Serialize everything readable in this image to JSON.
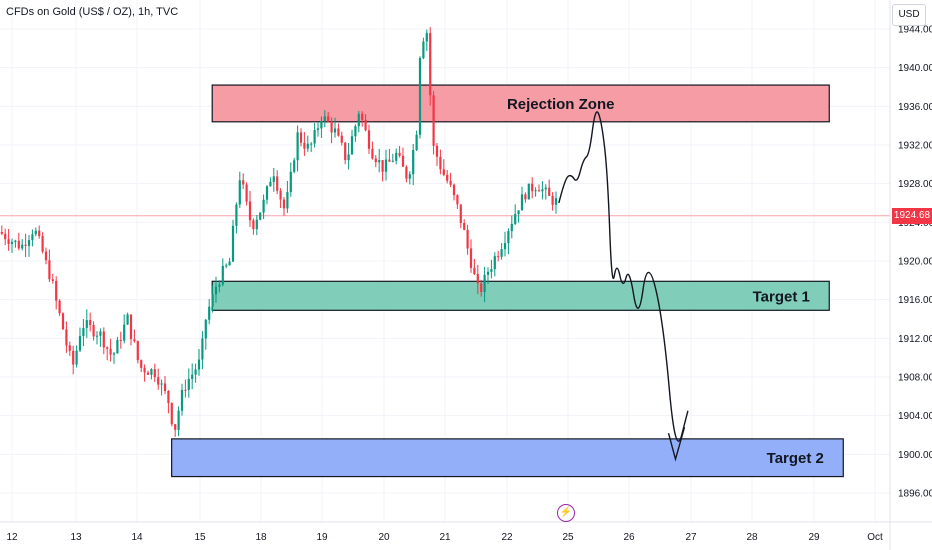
{
  "header": {
    "title": "CFDs on Gold (US$ / OZ), 1h, TVC",
    "currency": "USD"
  },
  "current_price": {
    "label": "1924.68",
    "value": 1924.68,
    "color": "#f23645"
  },
  "colors": {
    "up": "#089981",
    "down": "#f23645",
    "grid": "#f0f3fa",
    "line": "#131722"
  },
  "event_icon": "lightning-icon",
  "zones": [
    {
      "label": "Rejection Zone",
      "x0": 15.2,
      "x1": 25.25,
      "top": 1938.2,
      "bottom": 1934.4,
      "fill": "#f59ca4"
    },
    {
      "label": "Target 1",
      "x0": 15.2,
      "x1": 25.25,
      "top": 1917.9,
      "bottom": 1914.9,
      "fill": "#80cdb9"
    },
    {
      "label": "Target 2",
      "x0": 14.55,
      "x1": 25.48,
      "top": 1901.6,
      "bottom": 1897.7,
      "fill": "#94aff9"
    }
  ],
  "chart_data": {
    "type": "candlestick",
    "title": "CFDs on Gold (US$ / OZ), 1h, TVC",
    "x_ticks": [
      "12",
      "13",
      "14",
      "15",
      "18",
      "19",
      "20",
      "21",
      "22",
      "25",
      "26",
      "27",
      "28",
      "29",
      "Oct"
    ],
    "y_ticks": [
      1896,
      1900,
      1904,
      1908,
      1912,
      1916,
      1920,
      1924,
      1928,
      1932,
      1936,
      1940,
      1944
    ],
    "y_tick_labels": [
      "1896.00",
      "1900.00",
      "1904.00",
      "1908.00",
      "1912.00",
      "1916.00",
      "1920.00",
      "1924.00",
      "1928.00",
      "1932.00",
      "1936.00",
      "1940.00",
      "1944.00"
    ],
    "ylim": [
      1893,
      1947
    ],
    "price_path": [
      [
        11.8,
        1923.0
      ],
      [
        12.15,
        1921.5
      ],
      [
        12.35,
        1923.5
      ],
      [
        12.6,
        1918.5
      ],
      [
        12.8,
        1913.0
      ],
      [
        12.95,
        1909.0
      ],
      [
        13.1,
        1913.5
      ],
      [
        13.4,
        1912.5
      ],
      [
        13.6,
        1910.0
      ],
      [
        13.85,
        1914.0
      ],
      [
        14.05,
        1909.0
      ],
      [
        14.3,
        1908.5
      ],
      [
        14.5,
        1905.5
      ],
      [
        14.6,
        1902.5
      ],
      [
        14.75,
        1907.0
      ],
      [
        15.0,
        1909.5
      ],
      [
        15.1,
        1914.0
      ],
      [
        15.3,
        1918.0
      ],
      [
        15.5,
        1920.0
      ],
      [
        15.65,
        1929.0
      ],
      [
        15.85,
        1923.5
      ],
      [
        16.05,
        1926.0
      ],
      [
        16.2,
        1929.5
      ],
      [
        16.4,
        1925.0
      ],
      [
        16.6,
        1933.0
      ],
      [
        16.8,
        1931.5
      ],
      [
        17.0,
        1935.0
      ],
      [
        17.2,
        1933.5
      ],
      [
        17.4,
        1930.5
      ],
      [
        17.6,
        1935.5
      ],
      [
        17.8,
        1931.5
      ],
      [
        18.0,
        1929.5
      ],
      [
        18.2,
        1931.0
      ],
      [
        18.4,
        1928.5
      ],
      [
        18.55,
        1934.0
      ],
      [
        18.6,
        1941.5
      ],
      [
        18.7,
        1945.0
      ],
      [
        18.8,
        1932.0
      ],
      [
        18.95,
        1929.5
      ],
      [
        19.1,
        1927.5
      ],
      [
        19.25,
        1924.5
      ],
      [
        19.4,
        1920.5
      ],
      [
        19.55,
        1916.5
      ],
      [
        19.7,
        1919.0
      ],
      [
        19.9,
        1921.5
      ],
      [
        20.1,
        1924.5
      ],
      [
        20.3,
        1927.0
      ],
      [
        20.5,
        1928.0
      ],
      [
        20.7,
        1926.5
      ],
      [
        20.85,
        1926.0
      ]
    ],
    "up_color": "#089981",
    "down_color": "#f23645",
    "grid": true,
    "projection_path": [
      [
        20.85,
        1926.0
      ],
      [
        20.95,
        1928.5
      ],
      [
        21.05,
        1929.0
      ],
      [
        21.15,
        1928.0
      ],
      [
        21.25,
        1930.5
      ],
      [
        21.35,
        1931.0
      ],
      [
        21.45,
        1936.0
      ],
      [
        21.55,
        1934.5
      ],
      [
        21.65,
        1929.0
      ],
      [
        21.72,
        1917.0
      ],
      [
        21.8,
        1920.0
      ],
      [
        21.9,
        1917.0
      ],
      [
        22.0,
        1919.5
      ],
      [
        22.15,
        1913.5
      ],
      [
        22.3,
        1920.5
      ],
      [
        22.55,
        1914.0
      ],
      [
        22.75,
        1899.5
      ],
      [
        22.95,
        1904.5
      ]
    ]
  }
}
